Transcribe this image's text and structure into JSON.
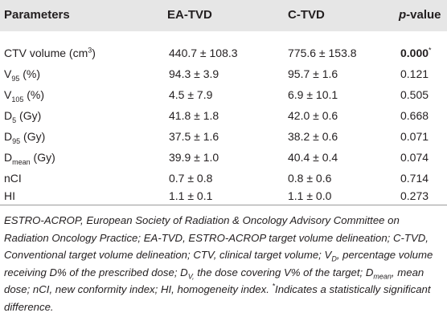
{
  "table": {
    "headers": {
      "parameters": "Parameters",
      "ea_tvd": "EA-TVD",
      "c_tvd": "C-TVD",
      "p_value_prefix": "p",
      "p_value_suffix": "-value"
    },
    "rows": [
      {
        "param_main": "CTV volume (cm",
        "param_sup": "3",
        "param_tail": ")",
        "ea": "440.7 ± 108.3",
        "c": "775.6 ± 153.8",
        "p": "0.000",
        "p_mark": "*"
      },
      {
        "param_main": "V",
        "param_sub": "95",
        "param_tail": " (%)",
        "ea": "94.3 ± 3.9",
        "c": "95.7 ± 1.6",
        "p": "0.121"
      },
      {
        "param_main": "V",
        "param_sub": "105",
        "param_tail": " (%)",
        "ea": "4.5 ± 7.9",
        "c": "6.9 ± 10.1",
        "p": "0.505"
      },
      {
        "param_main": "D",
        "param_sub": "5",
        "param_tail": " (Gy)",
        "ea": "41.8 ± 1.8",
        "c": "42.0 ± 0.6",
        "p": "0.668"
      },
      {
        "param_main": "D",
        "param_sub": "95",
        "param_tail": " (Gy)",
        "ea": "37.5 ± 1.6",
        "c": "38.2 ± 0.6",
        "p": "0.071"
      },
      {
        "param_main": "D",
        "param_sub": "mean",
        "param_tail": " (Gy)",
        "ea": "39.9 ± 1.0",
        "c": "40.4 ± 0.4",
        "p": "0.074"
      },
      {
        "param_main": "nCI",
        "ea": "0.7 ± 0.8",
        "c": "0.8 ± 0.6",
        "p": "0.714"
      },
      {
        "param_main": "HI",
        "ea": "1.1 ± 0.1",
        "c": "1.1 ± 0.0",
        "p": "0.273"
      }
    ]
  },
  "footnote": {
    "part1": "ESTRO-ACROP, European Society of Radiation & Oncology Advisory Committee on Radiation Oncology Practice; EA-TVD, ESTRO-ACROP target volume delineation; C-TVD, Conventional target volume delineation; CTV, clinical target volume; V",
    "sub1": "D",
    "part2": ", percentage volume receiving D% of the prescribed dose; D",
    "sub2": "V,",
    "part3": " the dose covering V% of the target; D",
    "sub3": "mean",
    "part4": ", mean dose; nCI, new conformity index; HI, homogeneity index. ",
    "sup": "*",
    "part5": "Indicates a statistically significant difference."
  }
}
